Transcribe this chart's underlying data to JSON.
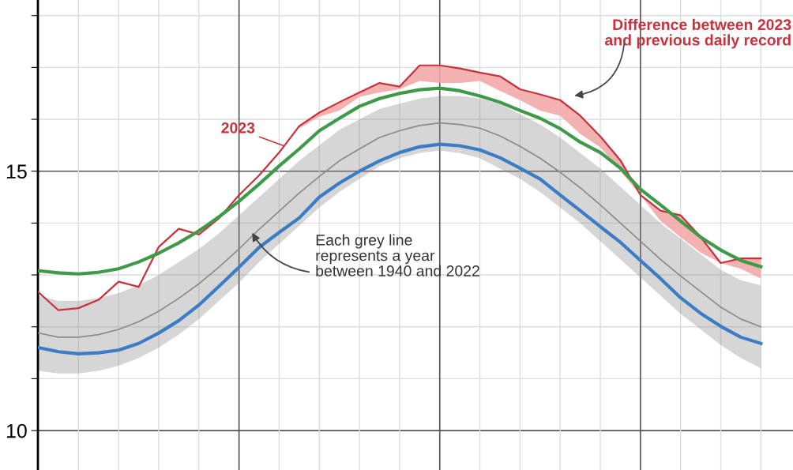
{
  "chart_data": {
    "type": "line",
    "categories": [
      null,
      null,
      null,
      null,
      null,
      null,
      null,
      null,
      null,
      null,
      null,
      null,
      null,
      null,
      null,
      null,
      null,
      null,
      null,
      null,
      null,
      null,
      null,
      null,
      null,
      null,
      null,
      null,
      null,
      null,
      null,
      null,
      null,
      null,
      null,
      null,
      null
    ],
    "series": [
      {
        "color": "#8a8a8a",
        "values": [
          11.88,
          11.8,
          11.8,
          11.85,
          11.95,
          12.1,
          12.3,
          12.55,
          12.83,
          13.15,
          13.5,
          13.88,
          14.23,
          14.58,
          14.9,
          15.2,
          15.43,
          15.65,
          15.78,
          15.88,
          15.93,
          15.9,
          15.83,
          15.68,
          15.48,
          15.25,
          14.98,
          14.68,
          14.35,
          14.0,
          13.65,
          13.3,
          12.98,
          12.68,
          12.38,
          12.15,
          12.0
        ],
        "lower": [
          11.15,
          11.1,
          11.1,
          11.15,
          11.25,
          11.4,
          11.6,
          11.85,
          12.15,
          12.5,
          12.85,
          13.25,
          13.6,
          13.95,
          14.3,
          14.6,
          14.85,
          15.1,
          15.25,
          15.35,
          15.4,
          15.35,
          15.25,
          15.05,
          14.85,
          14.6,
          14.3,
          14.0,
          13.65,
          13.3,
          12.95,
          12.6,
          12.25,
          11.95,
          11.65,
          11.4,
          11.2
        ],
        "upper": [
          12.6,
          12.5,
          12.5,
          12.55,
          12.65,
          12.8,
          13.0,
          13.25,
          13.5,
          13.8,
          14.15,
          14.5,
          14.85,
          15.2,
          15.5,
          15.8,
          16.0,
          16.2,
          16.3,
          16.4,
          16.45,
          16.45,
          16.4,
          16.3,
          16.1,
          15.9,
          15.65,
          15.35,
          15.05,
          14.7,
          14.35,
          14.0,
          13.7,
          13.4,
          13.1,
          12.9,
          12.8
        ]
      },
      {
        "name": "2023",
        "color": "#c8323c",
        "values": [
          12.67,
          12.32,
          12.36,
          12.52,
          12.87,
          12.77,
          13.54,
          13.89,
          13.78,
          14.09,
          14.54,
          14.92,
          15.36,
          15.87,
          16.13,
          16.33,
          16.52,
          16.7,
          16.63,
          17.04,
          17.04,
          16.98,
          16.9,
          16.83,
          16.58,
          16.48,
          16.37,
          16.07,
          15.67,
          15.21,
          14.54,
          14.24,
          14.15,
          13.73,
          13.23,
          13.32,
          13.32
        ],
        "lower": [
          null,
          null,
          null,
          null,
          null,
          null,
          null,
          null,
          null,
          null,
          null,
          null,
          null,
          15.82,
          16.05,
          16.17,
          16.43,
          16.52,
          16.58,
          16.74,
          16.7,
          16.7,
          16.74,
          16.55,
          16.37,
          16.17,
          16.07,
          15.72,
          15.46,
          15.0,
          14.54,
          14.04,
          13.73,
          13.43,
          13.23,
          13.12,
          12.93
        ],
        "upper": [
          null,
          null,
          null,
          null,
          null,
          null,
          null,
          null,
          null,
          null,
          null,
          null,
          null,
          15.87,
          16.13,
          16.33,
          16.52,
          16.7,
          16.63,
          17.04,
          17.04,
          16.98,
          16.9,
          16.83,
          16.58,
          16.48,
          16.37,
          16.07,
          15.67,
          15.21,
          14.54,
          14.24,
          14.15,
          13.73,
          13.23,
          13.32,
          13.32
        ]
      },
      {
        "color": "#3d9a46",
        "values": [
          13.08,
          13.04,
          13.02,
          13.05,
          13.12,
          13.25,
          13.42,
          13.62,
          13.85,
          14.12,
          14.42,
          14.75,
          15.1,
          15.43,
          15.78,
          16.02,
          16.25,
          16.4,
          16.5,
          16.57,
          16.6,
          16.55,
          16.45,
          16.33,
          16.17,
          16.02,
          15.82,
          15.56,
          15.36,
          15.06,
          14.65,
          14.35,
          14.04,
          13.73,
          13.48,
          13.28,
          13.16
        ]
      },
      {
        "color": "#3b7cc4",
        "values": [
          11.6,
          11.52,
          11.48,
          11.5,
          11.55,
          11.68,
          11.88,
          12.12,
          12.42,
          12.78,
          13.15,
          13.53,
          13.82,
          14.1,
          14.5,
          14.77,
          15.0,
          15.2,
          15.36,
          15.47,
          15.52,
          15.49,
          15.41,
          15.26,
          15.06,
          14.85,
          14.54,
          14.24,
          13.93,
          13.63,
          13.28,
          12.93,
          12.56,
          12.26,
          12.01,
          11.8,
          11.68
        ]
      }
    ],
    "ylim": [
      9.24,
      18.3
    ],
    "yticks": [
      {
        "value": 10,
        "label": "10"
      },
      {
        "value": 11,
        "label": null
      },
      {
        "value": 12,
        "label": null
      },
      {
        "value": 13,
        "label": null
      },
      {
        "value": 14,
        "label": null
      },
      {
        "value": 15,
        "label": "15"
      },
      {
        "value": 16,
        "label": null
      },
      {
        "value": 17,
        "label": null
      },
      {
        "value": 18,
        "label": null
      }
    ],
    "tick_labels": "y",
    "grid": true,
    "marker": "none",
    "line_style": "solid",
    "annotations": [
      "Difference between 2023\nand previous daily record",
      "Each grey line\nrepresents a year\nbetween 1940 and 2022"
    ]
  }
}
